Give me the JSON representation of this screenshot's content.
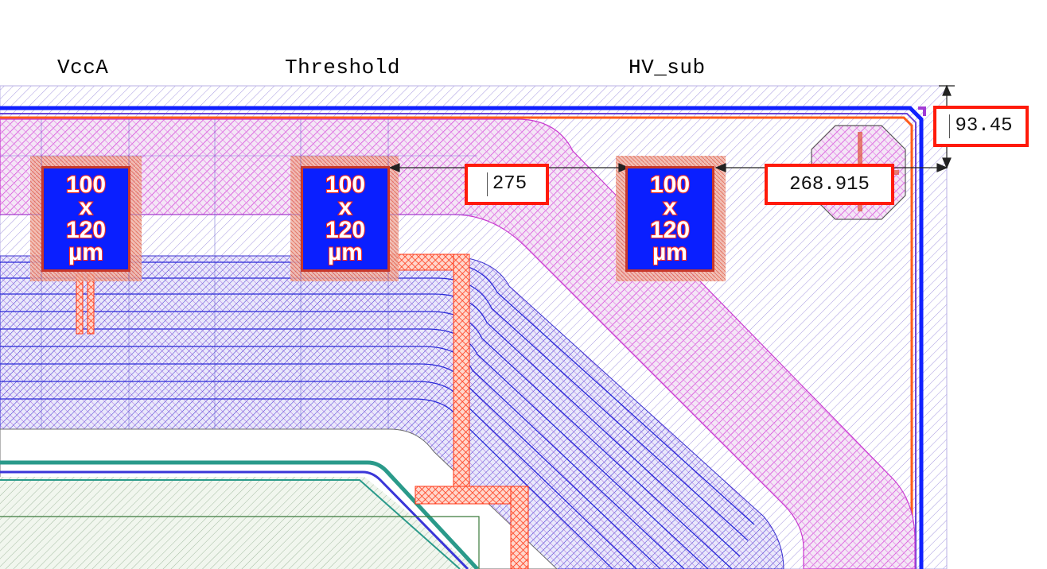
{
  "pin_labels": {
    "vcca": "VccA",
    "threshold": "Threshold",
    "hv_sub": "HV_sub"
  },
  "pads": [
    {
      "line1": "100",
      "line2": "x",
      "line3": "120",
      "line4": "µm"
    },
    {
      "line1": "100",
      "line2": "x",
      "line3": "120",
      "line4": "µm"
    },
    {
      "line1": "100",
      "line2": "x",
      "line3": "120",
      "line4": "µm"
    }
  ],
  "dimensions": {
    "pad_spacing": "275",
    "edge_distance": "268.915",
    "top_distance": "93.45"
  },
  "colors": {
    "pad_fill": "#0a1fff",
    "pad_text_outline": "#ff2a1a",
    "metal_magenta": "#d23bd6",
    "metal_blue": "#2a2ad8",
    "metal_red": "#ff3a1a",
    "substrate_hatch": "#9a8ad8",
    "dimension_box": "#ff1a0a"
  }
}
